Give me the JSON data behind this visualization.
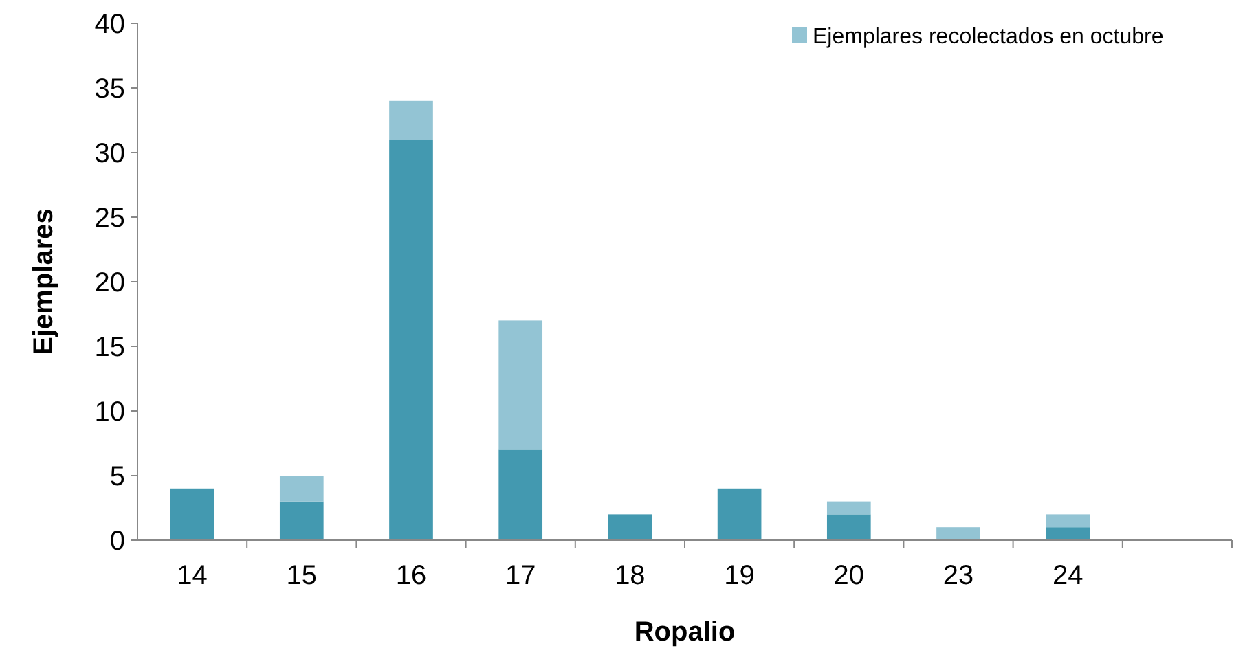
{
  "chart_data": {
    "type": "bar",
    "stacked": true,
    "xlabel": "Ropalio",
    "ylabel": "Ejemplares",
    "categories": [
      "14",
      "15",
      "16",
      "17",
      "18",
      "19",
      "20",
      "23",
      "24",
      null
    ],
    "series": [
      {
        "color": "#4399b0",
        "values": [
          4,
          3,
          31,
          7,
          2,
          4,
          2,
          0,
          1,
          null
        ]
      },
      {
        "name": "Ejemplares recolectados en octubre",
        "color": "#93c4d4",
        "values": [
          0,
          2,
          3,
          10,
          0,
          0,
          1,
          1,
          1,
          null
        ]
      }
    ],
    "ylim": [
      0,
      40
    ],
    "yticks": [
      0,
      5,
      10,
      15,
      20,
      25,
      30,
      35,
      40
    ],
    "grid": false,
    "legend": "top right"
  }
}
